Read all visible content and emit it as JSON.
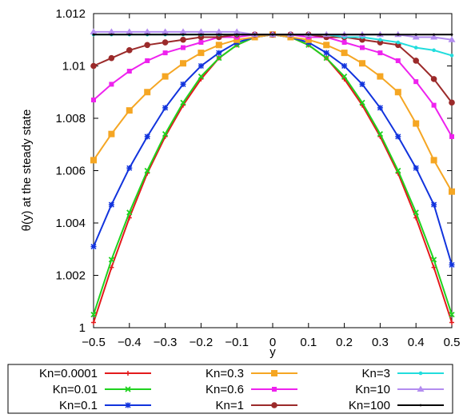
{
  "chart_data": {
    "type": "line",
    "title": "",
    "xlabel": "y",
    "ylabel": "θ(y) at the steady state",
    "xlim": [
      -0.5,
      0.5
    ],
    "ylim": [
      1.0,
      1.012
    ],
    "x_ticks": [
      -0.5,
      -0.4,
      -0.3,
      -0.2,
      -0.1,
      0,
      0.1,
      0.2,
      0.3,
      0.4,
      0.5
    ],
    "x_tick_labels": [
      "−0.5",
      "−0.4",
      "−0.3",
      "−0.2",
      "−0.1",
      "0",
      "0.1",
      "0.2",
      "0.3",
      "0.4",
      "0.5"
    ],
    "y_ticks": [
      1.0,
      1.002,
      1.004,
      1.006,
      1.008,
      1.01,
      1.012
    ],
    "y_tick_labels": [
      "1",
      "1.002",
      "1.004",
      "1.006",
      "1.008",
      "1.01",
      "1.012"
    ],
    "grid": false,
    "legend_position": "bottom",
    "x": [
      -0.5,
      -0.45,
      -0.4,
      -0.35,
      -0.3,
      -0.25,
      -0.2,
      -0.15,
      -0.1,
      -0.05,
      0,
      0.05,
      0.1,
      0.15,
      0.2,
      0.25,
      0.3,
      0.35,
      0.4,
      0.45,
      0.5
    ],
    "series": [
      {
        "name": "Kn=0.0001",
        "color": "#e31a1c",
        "marker": "plus",
        "values": [
          1.0002,
          1.0023,
          1.0042,
          1.0059,
          1.0073,
          1.0085,
          1.0095,
          1.0103,
          1.0108,
          1.0111,
          1.0112,
          1.0111,
          1.0108,
          1.0103,
          1.0095,
          1.0085,
          1.0073,
          1.0059,
          1.0042,
          1.0023,
          1.0002
        ]
      },
      {
        "name": "Kn=0.01",
        "color": "#1ed21e",
        "marker": "x",
        "values": [
          1.0005,
          1.0026,
          1.0044,
          1.006,
          1.0074,
          1.0086,
          1.0096,
          1.0103,
          1.0108,
          1.0111,
          1.0112,
          1.0111,
          1.0108,
          1.0103,
          1.0096,
          1.0086,
          1.0074,
          1.006,
          1.0044,
          1.0026,
          1.0005
        ]
      },
      {
        "name": "Kn=0.1",
        "color": "#1133dd",
        "marker": "star",
        "values": [
          1.0031,
          1.0047,
          1.0061,
          1.0073,
          1.0084,
          1.0093,
          1.01,
          1.0105,
          1.0109,
          1.0111,
          1.0112,
          1.0111,
          1.0109,
          1.0105,
          1.01,
          1.0093,
          1.0084,
          1.0073,
          1.0061,
          1.0047,
          1.0024
        ]
      },
      {
        "name": "Kn=0.3",
        "color": "#f5a623",
        "marker": "square",
        "values": [
          1.0064,
          1.0074,
          1.0083,
          1.009,
          1.0096,
          1.0101,
          1.0105,
          1.0108,
          1.011,
          1.0111,
          1.0112,
          1.0111,
          1.011,
          1.0108,
          1.0105,
          1.0101,
          1.0096,
          1.009,
          1.0078,
          1.0064,
          1.0052
        ]
      },
      {
        "name": "Kn=0.6",
        "color": "#ee22ee",
        "marker": "square-small",
        "values": [
          1.0087,
          1.0093,
          1.0098,
          1.0102,
          1.0105,
          1.0107,
          1.0109,
          1.0111,
          1.0111,
          1.0112,
          1.0112,
          1.0112,
          1.0111,
          1.0111,
          1.0109,
          1.0107,
          1.0105,
          1.0102,
          1.0094,
          1.0085,
          1.0073
        ]
      },
      {
        "name": "Kn=1",
        "color": "#9b2a2a",
        "marker": "circle",
        "values": [
          1.01,
          1.0103,
          1.0106,
          1.0108,
          1.0109,
          1.011,
          1.0111,
          1.0111,
          1.0112,
          1.0112,
          1.0112,
          1.0112,
          1.0112,
          1.0111,
          1.0111,
          1.011,
          1.0109,
          1.0108,
          1.0102,
          1.0095,
          1.0086
        ]
      },
      {
        "name": "Kn=3",
        "color": "#22dddd",
        "marker": "dot",
        "values": [
          1.0112,
          1.0112,
          1.0112,
          1.0112,
          1.0112,
          1.0112,
          1.0112,
          1.0112,
          1.0112,
          1.0112,
          1.0112,
          1.0112,
          1.0112,
          1.0112,
          1.0111,
          1.0111,
          1.011,
          1.0109,
          1.0107,
          1.0106,
          1.0104
        ]
      },
      {
        "name": "Kn=10",
        "color": "#b38cf0",
        "marker": "triangle",
        "values": [
          1.0113,
          1.0113,
          1.0113,
          1.0113,
          1.0113,
          1.0113,
          1.0113,
          1.0113,
          1.0113,
          1.0112,
          1.0112,
          1.0112,
          1.0112,
          1.0112,
          1.0112,
          1.0112,
          1.0112,
          1.0112,
          1.0111,
          1.0111,
          1.011
        ]
      },
      {
        "name": "Kn=100",
        "color": "#000000",
        "marker": "dot-small",
        "values": [
          1.0112,
          1.0112,
          1.0112,
          1.0112,
          1.0112,
          1.0112,
          1.0112,
          1.0112,
          1.0112,
          1.0112,
          1.0112,
          1.0112,
          1.0112,
          1.0112,
          1.0112,
          1.0112,
          1.0112,
          1.0112,
          1.0112,
          1.0112,
          1.0112
        ]
      }
    ]
  }
}
